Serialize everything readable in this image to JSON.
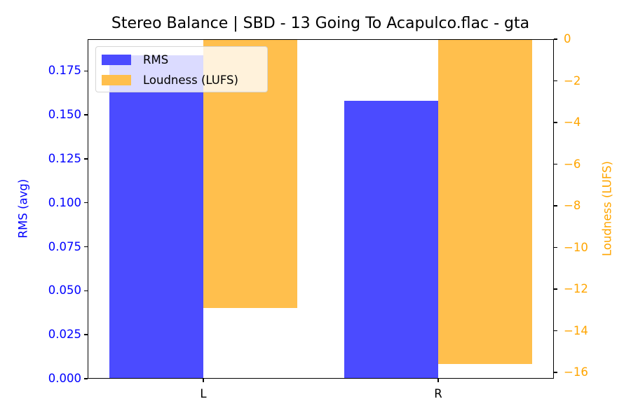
{
  "title": "Stereo Balance | SBD - 13 Going To Acapulco.flac - gta",
  "colors": {
    "rms": "#4b4bff",
    "lufs": "#ffbf4d",
    "left_axis": "#0000ff",
    "right_axis": "#ffa500"
  },
  "axes": {
    "left_ylabel": "RMS (avg)",
    "right_ylabel": "Loudness (LUFS)",
    "left_ticks": [
      "0.000",
      "0.025",
      "0.050",
      "0.075",
      "0.100",
      "0.125",
      "0.150",
      "0.175"
    ],
    "right_ticks": [
      "0",
      "−2",
      "−4",
      "−6",
      "−8",
      "−10",
      "−12",
      "−14",
      "−16"
    ],
    "x_ticks": [
      "L",
      "R"
    ]
  },
  "legend": {
    "items": [
      {
        "label": "RMS"
      },
      {
        "label": "Loudness (LUFS)"
      }
    ]
  },
  "chart_data": {
    "type": "bar",
    "title": "Stereo Balance | SBD - 13 Going To Acapulco.flac - gta",
    "categories": [
      "L",
      "R"
    ],
    "series": [
      {
        "name": "RMS",
        "axis": "left",
        "values": [
          0.184,
          0.158
        ],
        "color": "#4b4bff"
      },
      {
        "name": "Loudness (LUFS)",
        "axis": "right",
        "values": [
          -12.9,
          -15.6
        ],
        "color": "#ffbf4d"
      }
    ],
    "xlabel": "",
    "ylabel": "RMS (avg)",
    "ylabel_right": "Loudness (LUFS)",
    "ylim": [
      0,
      0.193
    ],
    "ylim_right": [
      -16.3,
      0
    ],
    "grid": false,
    "legend_position": "upper left"
  }
}
